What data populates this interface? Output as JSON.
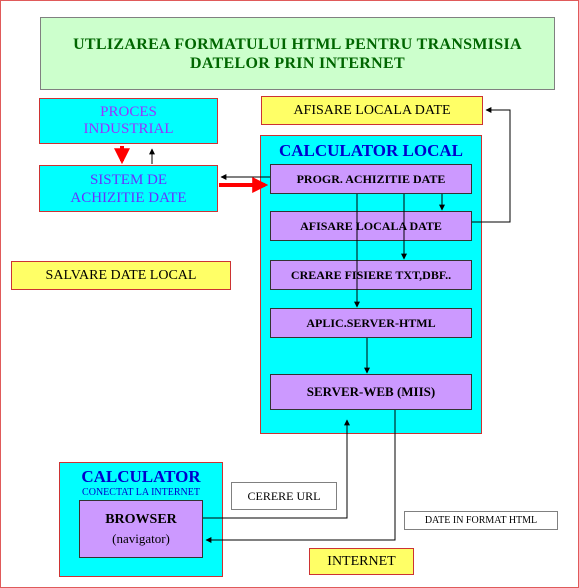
{
  "title": {
    "line1": "UTLIZAREA FORMATULUI  HTML PENTRU TRANSMISIA",
    "line2": "DATELOR  PRIN INTERNET"
  },
  "proces": {
    "line1": "PROCES",
    "line2": "INDUSTRIAL"
  },
  "sistem": {
    "line1": "SISTEM DE",
    "line2": "ACHIZITIE DATE"
  },
  "afisare_top": "AFISARE LOCALA DATE",
  "salvare": "SALVARE DATE LOCAL",
  "calculator_local": {
    "title": "CALCULATOR LOCAL",
    "items": [
      "PROGR. ACHIZITIE DATE",
      "AFISARE LOCALA DATE",
      "CREARE FISIERE TXT,DBF..",
      "APLIC.SERVER-HTML",
      "SERVER-WEB (MIIS)"
    ]
  },
  "calculator_internet": {
    "title": "CALCULATOR",
    "subtitle": "CONECTAT LA INTERNET",
    "browser": "BROWSER",
    "browser_sub": "(navigator)"
  },
  "cerere_url": "CERERE URL",
  "date_format": "DATE IN FORMAT HTML",
  "internet": "INTERNET",
  "colors": {
    "title_bg": "#ccffcc",
    "title_text": "#006600",
    "cyan": "#00ffff",
    "yellow": "#ffff66",
    "purple": "#cc99ff",
    "blue_title": "#0000cc",
    "red_arrow": "#ff0000"
  }
}
